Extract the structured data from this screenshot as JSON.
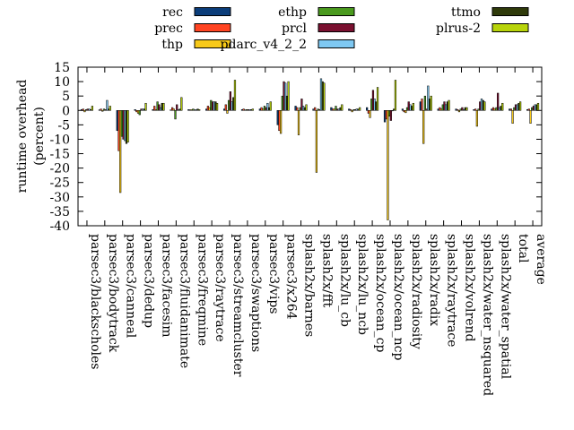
{
  "chart_data": {
    "type": "bar",
    "ylabel_line1": "runtime overhead",
    "ylabel_line2": "(percent)",
    "ylim": [
      -40,
      15
    ],
    "yticks": [
      15,
      10,
      5,
      0,
      -5,
      -10,
      -15,
      -20,
      -25,
      -30,
      -35,
      -40
    ],
    "grid": false,
    "legend_position": "top",
    "categories": [
      "parsec3/blackscholes",
      "parsec3/bodytrack",
      "parsec3/canneal",
      "parsec3/dedup",
      "parsec3/facesim",
      "parsec3/fluidanimate",
      "parsec3/freqmine",
      "parsec3/raytrace",
      "parsec3/streamcluster",
      "parsec3/swaptions",
      "parsec3/vips",
      "parsec3/x264",
      "splash2x/barnes",
      "splash2x/fft",
      "splash2x/lu_cb",
      "splash2x/lu_ncb",
      "splash2x/ocean_cp",
      "splash2x/ocean_ncp",
      "splash2x/radiosity",
      "splash2x/radix",
      "splash2x/raytrace",
      "splash2x/volrend",
      "splash2x/water_nsquared",
      "splash2x/water_spatial",
      "total",
      "average"
    ],
    "series": [
      {
        "name": "rec",
        "color": "#0b3d7a",
        "values": [
          0.3,
          0.2,
          -7,
          0.3,
          0.3,
          0.2,
          0.3,
          0.5,
          0.5,
          0.3,
          0.5,
          -5,
          1.5,
          0.5,
          1,
          0.5,
          1,
          -4,
          0.5,
          3,
          0.5,
          0.5,
          0.3,
          0.5,
          0.5,
          0.3
        ]
      },
      {
        "name": "prec",
        "color": "#ff4422",
        "values": [
          0.5,
          0.5,
          -14,
          -0.5,
          1.5,
          1,
          0.2,
          1.5,
          2,
          0.5,
          1,
          -7,
          1,
          1,
          0.5,
          0.3,
          -1,
          -3,
          -0.5,
          4,
          1,
          0.3,
          0.5,
          1,
          0.5,
          0.5
        ]
      },
      {
        "name": "thp",
        "color": "#f7c919",
        "values": [
          -0.5,
          -0.3,
          -28.5,
          -1,
          0.3,
          0.5,
          0.3,
          1,
          -1,
          0.2,
          0.5,
          -8,
          -8.5,
          -21.5,
          0.5,
          -0.5,
          -2.5,
          -38,
          -0.8,
          -11.5,
          0.5,
          -0.5,
          -5.5,
          0.5,
          -4.5,
          -4.5
        ]
      },
      {
        "name": "ethp",
        "color": "#4a9a1e",
        "values": [
          0.3,
          0.5,
          -9,
          -1.5,
          3,
          -3,
          0.5,
          3.5,
          3.5,
          0.3,
          1.5,
          5,
          1,
          0.5,
          1.5,
          0.3,
          4,
          -2,
          1,
          5,
          2,
          0.5,
          0.5,
          1,
          1,
          1
        ]
      },
      {
        "name": "prcl",
        "color": "#7a1030",
        "values": [
          0.5,
          0.3,
          -10,
          0.5,
          2,
          2,
          0.2,
          3,
          6.5,
          0.3,
          1,
          10,
          4,
          0.3,
          0.5,
          0.3,
          7,
          -3.5,
          3,
          0.5,
          3,
          1,
          3,
          6,
          2,
          1.5
        ]
      },
      {
        "name": "pdarc_v4_2_2",
        "color": "#7ec8f2",
        "values": [
          0.5,
          3.5,
          -10.5,
          0.5,
          1,
          0.3,
          0.3,
          3,
          3,
          0.3,
          2.5,
          9.5,
          1.5,
          11,
          0.5,
          0.5,
          4,
          0,
          2,
          8.5,
          2,
          0.3,
          4,
          1,
          2,
          2
        ]
      },
      {
        "name": "ttmo",
        "color": "#2f3a0a",
        "values": [
          0.3,
          0.5,
          -11.5,
          0.5,
          2.5,
          0.5,
          0.5,
          3,
          4.5,
          0.3,
          1,
          5,
          1,
          10,
          1,
          0.5,
          3,
          0.5,
          1.5,
          4,
          3,
          1,
          3.5,
          1.5,
          2.5,
          2
        ]
      },
      {
        "name": "plrus-2",
        "color": "#b8d40a",
        "values": [
          1.5,
          1.5,
          -11,
          2.5,
          2.5,
          4.5,
          0.3,
          2.5,
          10.5,
          0.5,
          3,
          10,
          2,
          9.5,
          2,
          1,
          8,
          10.5,
          2.5,
          5,
          3.5,
          1,
          3,
          2.5,
          3,
          2.5
        ]
      }
    ]
  }
}
